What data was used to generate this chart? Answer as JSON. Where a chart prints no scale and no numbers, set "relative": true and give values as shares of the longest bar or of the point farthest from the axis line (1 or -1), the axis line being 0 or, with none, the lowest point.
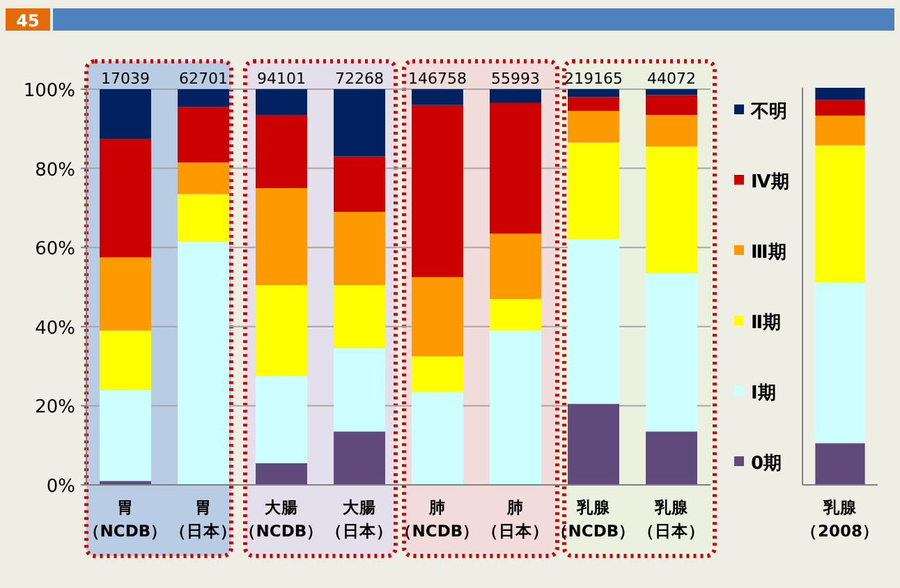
{
  "chart_data": [
    {
      "type": "bar",
      "stacked": true,
      "annotations": [
        "45",
        {
          "text": "17039",
          "x": "胃（NCDB）",
          "y": 100
        },
        {
          "text": "62701",
          "x": "胃（日本）",
          "y": 100
        },
        {
          "text": "94101",
          "x": "大腸（NCDB）",
          "y": 100
        },
        {
          "text": "72268",
          "x": "大腸（日本）",
          "y": 100
        },
        {
          "text": "146758",
          "x": "肺（NCDB）",
          "y": 100
        },
        {
          "text": "55993",
          "x": "肺（日本）",
          "y": 100
        },
        {
          "text": "219165",
          "x": "乳腺（NCDB）",
          "y": 100
        },
        {
          "text": "44072",
          "x": "乳腺（日本）",
          "y": 100
        }
      ],
      "categories": [
        "胃（NCDB）",
        "胃（日本）",
        "大腸（NCDB）",
        "大腸（日本）",
        "肺（NCDB）",
        "肺（日本）",
        "乳腺（NCDB）",
        "乳腺（日本）"
      ],
      "series": [
        {
          "name": "0期",
          "color": "#604a7b",
          "values": [
            1,
            0,
            5.5,
            13.5,
            0,
            0,
            20.5,
            13.5
          ]
        },
        {
          "name": "Ⅰ期",
          "color": "#ccffff",
          "values": [
            23,
            61.5,
            22,
            21,
            23.5,
            39,
            41.5,
            40
          ]
        },
        {
          "name": "Ⅱ期",
          "color": "#ffff00",
          "values": [
            15,
            12,
            23,
            16,
            9,
            8,
            24.5,
            32
          ]
        },
        {
          "name": "Ⅲ期",
          "color": "#ff9900",
          "values": [
            18.5,
            8,
            24.5,
            18.5,
            20,
            16.5,
            8,
            8
          ]
        },
        {
          "name": "Ⅳ期",
          "color": "#cc0000",
          "values": [
            30,
            14,
            18.5,
            14,
            43.5,
            33,
            3.5,
            5
          ]
        },
        {
          "name": "不明",
          "color": "#002060",
          "values": [
            12.5,
            4.5,
            6.5,
            17,
            4,
            3.5,
            2,
            1.5
          ]
        }
      ],
      "ylim": [
        0,
        100
      ],
      "yticks": [
        {
          "value": 0,
          "label": "0%"
        },
        {
          "value": 20,
          "label": "20%"
        },
        {
          "value": 40,
          "label": "40%"
        },
        {
          "value": 60,
          "label": "60%"
        },
        {
          "value": 80,
          "label": "80%"
        },
        {
          "value": 100,
          "label": "100%"
        }
      ],
      "grid": "y",
      "legend": "right"
    },
    {
      "type": "bar",
      "stacked": true,
      "relative": true,
      "categories": [
        "乳腺（2008）"
      ],
      "series": [
        {
          "color": "#604a7b",
          "values": [
            0.105
          ]
        },
        {
          "color": "#ccffff",
          "values": [
            0.405
          ]
        },
        {
          "color": "#ffff00",
          "values": [
            0.345
          ]
        },
        {
          "color": "#ff9900",
          "values": [
            0.075
          ]
        },
        {
          "color": "#cc0000",
          "values": [
            0.04
          ]
        },
        {
          "color": "#002060",
          "values": [
            0.03
          ]
        }
      ]
    }
  ]
}
